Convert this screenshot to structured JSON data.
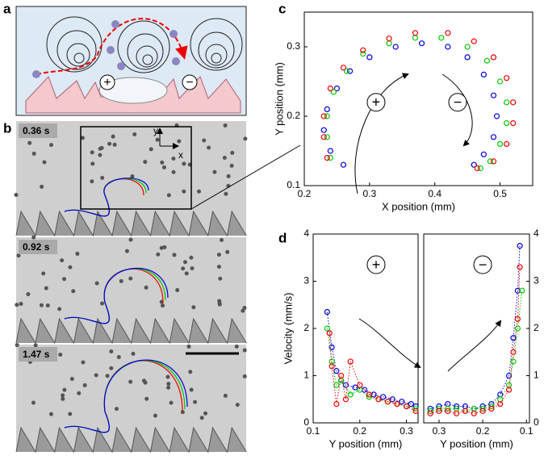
{
  "panel_labels": [
    "a",
    "b",
    "c",
    "d"
  ],
  "schematic": {
    "plus": "+",
    "minus": "−"
  },
  "micrographs": {
    "times": [
      "0.36 s",
      "0.92 s",
      "1.47 s"
    ],
    "axis_labels": [
      "y",
      "x"
    ]
  },
  "chart_data": [
    {
      "type": "scatter",
      "xlabel": "X position (mm)",
      "ylabel": "Y position (mm)",
      "xlim": [
        0.2,
        0.55
      ],
      "ylim": [
        0.1,
        0.35
      ],
      "xticks": [
        0.2,
        0.3,
        0.4,
        0.5
      ],
      "yticks": [
        0.1,
        0.2,
        0.3
      ],
      "yaxis_side": "left",
      "line": "none",
      "annotations": [
        "+",
        "−"
      ],
      "series": [
        {
          "color": "#0000dd",
          "x": [
            0.26,
            0.24,
            0.23,
            0.235,
            0.25,
            0.27,
            0.3,
            0.34,
            0.38,
            0.42,
            0.45,
            0.475,
            0.49,
            0.495,
            0.49,
            0.475,
            0.46
          ],
          "values": [
            0.13,
            0.15,
            0.18,
            0.21,
            0.24,
            0.265,
            0.285,
            0.3,
            0.305,
            0.3,
            0.285,
            0.26,
            0.23,
            0.2,
            0.17,
            0.145,
            0.13
          ]
        },
        {
          "color": "#00cc00",
          "x": [
            0.24,
            0.235,
            0.235,
            0.245,
            0.265,
            0.29,
            0.33,
            0.37,
            0.41,
            0.45,
            0.48,
            0.5,
            0.51,
            0.51,
            0.5,
            0.485,
            0.47
          ],
          "values": [
            0.14,
            0.17,
            0.2,
            0.235,
            0.265,
            0.29,
            0.305,
            0.313,
            0.313,
            0.3,
            0.28,
            0.25,
            0.22,
            0.19,
            0.16,
            0.135,
            0.125
          ]
        },
        {
          "color": "#ee0000",
          "x": [
            0.235,
            0.23,
            0.23,
            0.24,
            0.26,
            0.29,
            0.33,
            0.37,
            0.42,
            0.46,
            0.49,
            0.51,
            0.52,
            0.52,
            0.51,
            0.49,
            0.465
          ],
          "values": [
            0.14,
            0.17,
            0.2,
            0.24,
            0.27,
            0.295,
            0.312,
            0.32,
            0.32,
            0.308,
            0.285,
            0.255,
            0.22,
            0.19,
            0.16,
            0.135,
            0.125
          ]
        }
      ]
    },
    {
      "type": "scatter",
      "xlabel": "Y position (mm)",
      "ylabel": "Velocity (mm/s)",
      "xlim": [
        0.1,
        0.325
      ],
      "ylim": [
        0,
        4
      ],
      "xticks": [
        0.1,
        0.2,
        0.3
      ],
      "yticks": [
        0,
        1,
        2,
        3,
        4
      ],
      "yaxis_side": "left",
      "line": "dotted",
      "annotations": [
        "+"
      ],
      "series": [
        {
          "color": "#0000dd",
          "x": [
            0.13,
            0.14,
            0.15,
            0.16,
            0.17,
            0.19,
            0.21,
            0.23,
            0.25,
            0.27,
            0.29,
            0.31,
            0.32
          ],
          "values": [
            2.35,
            1.6,
            1.1,
            0.9,
            0.8,
            0.75,
            0.7,
            0.6,
            0.55,
            0.5,
            0.45,
            0.4,
            0.35
          ]
        },
        {
          "color": "#00cc00",
          "x": [
            0.13,
            0.14,
            0.15,
            0.16,
            0.18,
            0.2,
            0.22,
            0.24,
            0.26,
            0.28,
            0.3,
            0.32
          ],
          "values": [
            2.0,
            1.3,
            0.8,
            0.9,
            0.6,
            0.7,
            0.55,
            0.5,
            0.45,
            0.4,
            0.35,
            0.3
          ]
        },
        {
          "color": "#ee0000",
          "x": [
            0.135,
            0.14,
            0.15,
            0.16,
            0.17,
            0.18,
            0.2,
            0.22,
            0.24,
            0.26,
            0.28,
            0.3,
            0.32
          ],
          "values": [
            1.9,
            1.2,
            0.4,
            1.0,
            0.5,
            1.3,
            0.8,
            0.6,
            0.5,
            0.45,
            0.4,
            0.35,
            0.25
          ]
        }
      ]
    },
    {
      "type": "scatter",
      "xlabel": "Y position (mm)",
      "xlim": [
        0.335,
        0.093
      ],
      "ylim": [
        0,
        4
      ],
      "xticks": [
        0.3,
        0.2,
        0.1
      ],
      "yticks": [
        0,
        1,
        2,
        3,
        4
      ],
      "yaxis_side": "right",
      "line": "dotted",
      "annotations": [
        "−"
      ],
      "series": [
        {
          "color": "#0000dd",
          "x": [
            0.32,
            0.3,
            0.28,
            0.26,
            0.24,
            0.22,
            0.2,
            0.18,
            0.16,
            0.14,
            0.13,
            0.12,
            0.115
          ],
          "values": [
            0.3,
            0.35,
            0.4,
            0.35,
            0.35,
            0.3,
            0.35,
            0.4,
            0.6,
            1.0,
            1.8,
            2.8,
            3.75
          ]
        },
        {
          "color": "#00cc00",
          "x": [
            0.32,
            0.3,
            0.28,
            0.26,
            0.24,
            0.22,
            0.2,
            0.18,
            0.16,
            0.14,
            0.13,
            0.12,
            0.11
          ],
          "values": [
            0.25,
            0.3,
            0.3,
            0.3,
            0.25,
            0.3,
            0.3,
            0.35,
            0.5,
            0.8,
            1.3,
            2.0,
            2.8
          ]
        },
        {
          "color": "#ee0000",
          "x": [
            0.32,
            0.3,
            0.28,
            0.26,
            0.24,
            0.22,
            0.2,
            0.18,
            0.16,
            0.14,
            0.13,
            0.12,
            0.115
          ],
          "values": [
            0.2,
            0.25,
            0.25,
            0.2,
            0.25,
            0.2,
            0.25,
            0.3,
            0.4,
            0.7,
            1.5,
            2.2,
            3.3
          ]
        }
      ]
    }
  ]
}
